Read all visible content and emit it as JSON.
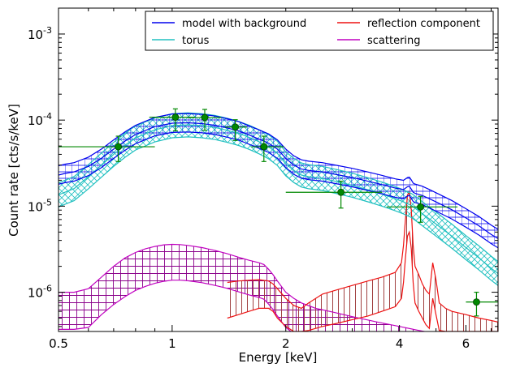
{
  "chart_data": {
    "type": "line",
    "xlabel": "Energy [keV]",
    "ylabel": "Count rate [cts/s/keV]",
    "xscale": "log",
    "yscale": "log",
    "xlim": [
      0.5,
      7.3
    ],
    "ylim": [
      3.5e-07,
      0.002
    ],
    "x_ticks": [
      {
        "value": 0.5,
        "label": "0.5"
      },
      {
        "value": 1,
        "label": "1"
      },
      {
        "value": 2,
        "label": "2"
      },
      {
        "value": 4,
        "label": "4"
      },
      {
        "value": 6,
        "label": "6"
      }
    ],
    "y_ticks": [
      {
        "value": 1e-06,
        "base": "10",
        "exp": "-6"
      },
      {
        "value": 1e-05,
        "base": "10",
        "exp": "-5"
      },
      {
        "value": 0.0001,
        "base": "10",
        "exp": "-4"
      },
      {
        "value": 0.001,
        "base": "10",
        "exp": "-3"
      }
    ],
    "legend_position": "top-right",
    "grid": false,
    "legend": [
      {
        "name": "model with background",
        "color": "#0000ee"
      },
      {
        "name": "torus",
        "color": "#20c0c0"
      },
      {
        "name": "reflection component",
        "color": "#ee1111"
      },
      {
        "name": "scattering",
        "color": "#c000c0"
      }
    ],
    "series": [
      {
        "name": "model with background",
        "color": "#0000ee",
        "band": true,
        "x": [
          0.5,
          0.52,
          0.55,
          0.6,
          0.65,
          0.7,
          0.75,
          0.8,
          0.9,
          1.0,
          1.1,
          1.2,
          1.3,
          1.4,
          1.5,
          1.6,
          1.7,
          1.8,
          1.9,
          2.0,
          2.1,
          2.2,
          2.3,
          2.5,
          2.7,
          3.0,
          3.3,
          3.6,
          3.9,
          4.1,
          4.2,
          4.25,
          4.3,
          4.35,
          4.4,
          4.5,
          4.6,
          4.8,
          5.0,
          5.5,
          6.0,
          6.5,
          7.0,
          7.3
        ],
        "y": [
          2.3e-05,
          2.4e-05,
          2.5e-05,
          2.9e-05,
          3.6e-05,
          4.6e-05,
          5.7e-05,
          6.8e-05,
          8.4e-05,
          9.2e-05,
          9.3e-05,
          9.1e-05,
          8.7e-05,
          8.1e-05,
          7.5e-05,
          6.7e-05,
          6e-05,
          5.4e-05,
          4.6e-05,
          3.6e-05,
          3e-05,
          2.7e-05,
          2.6e-05,
          2.5e-05,
          2.35e-05,
          2.15e-05,
          1.95e-05,
          1.78e-05,
          1.62e-05,
          1.56e-05,
          1.68e-05,
          1.7e-05,
          1.58e-05,
          1.45e-05,
          1.41e-05,
          1.37e-05,
          1.33e-05,
          1.22e-05,
          1.12e-05,
          9.1e-06,
          7.3e-06,
          5.9e-06,
          4.7e-06,
          4.2e-06
        ],
        "band_factor": 1.28
      },
      {
        "name": "torus",
        "color": "#20c0c0",
        "band": true,
        "x": [
          0.5,
          0.52,
          0.55,
          0.6,
          0.65,
          0.7,
          0.75,
          0.8,
          0.9,
          1.0,
          1.1,
          1.2,
          1.3,
          1.4,
          1.5,
          1.6,
          1.7,
          1.8,
          1.9,
          2.0,
          2.1,
          2.2,
          2.3,
          2.5,
          2.7,
          3.0,
          3.3,
          3.6,
          3.9,
          4.1,
          4.3,
          4.5,
          4.7,
          5.0,
          5.5,
          6.0,
          6.5,
          7.0,
          7.3
        ],
        "y": [
          1.35e-05,
          1.45e-05,
          1.6e-05,
          2.2e-05,
          3e-05,
          4e-05,
          5.1e-05,
          6.2e-05,
          7.7e-05,
          8.6e-05,
          8.8e-05,
          8.6e-05,
          8.2e-05,
          7.6e-05,
          7e-05,
          6.3e-05,
          5.6e-05,
          4.9e-05,
          4.1e-05,
          3.1e-05,
          2.6e-05,
          2.3e-05,
          2.2e-05,
          2.1e-05,
          1.95e-05,
          1.75e-05,
          1.55e-05,
          1.38e-05,
          1.22e-05,
          1.12e-05,
          1.02e-05,
          8.8e-06,
          7.6e-06,
          6.2e-06,
          4.5e-06,
          3.3e-06,
          2.5e-06,
          1.9e-06,
          1.65e-06
        ],
        "band_factor": 1.38
      },
      {
        "name": "reflection component",
        "color": "#ee1111",
        "band": true,
        "x": [
          1.4,
          1.5,
          1.6,
          1.7,
          1.8,
          1.85,
          1.9,
          2.0,
          2.1,
          2.2,
          2.3,
          2.5,
          2.7,
          3.0,
          3.3,
          3.6,
          3.9,
          4.05,
          4.1,
          4.15,
          4.2,
          4.25,
          4.3,
          4.35,
          4.4,
          4.5,
          4.6,
          4.7,
          4.8,
          4.9,
          5.0,
          5.1,
          5.3,
          5.5,
          6.0,
          6.5,
          7.0,
          7.3
        ],
        "y": [
          1.3e-06,
          1.35e-06,
          1.38e-06,
          1.4e-06,
          1.35e-06,
          1.25e-06,
          1.1e-06,
          8.5e-07,
          7e-07,
          6.5e-07,
          7.5e-07,
          9.5e-07,
          1.05e-06,
          1.2e-06,
          1.35e-06,
          1.5e-06,
          1.7e-06,
          2.2e-06,
          3.5e-06,
          7e-06,
          1.35e-05,
          1.45e-05,
          9e-06,
          3.5e-06,
          2e-06,
          1.6e-06,
          1.25e-06,
          1.05e-06,
          9.5e-07,
          2.2e-06,
          1.4e-06,
          7.5e-07,
          6.5e-07,
          6e-07,
          5.5e-07,
          5e-07,
          4.7e-07,
          4.5e-07
        ],
        "band_low": [
          5e-07,
          5.5e-07,
          6e-07,
          6.5e-07,
          6.5e-07,
          6e-07,
          5e-07,
          4e-07,
          3.5e-07,
          3.5e-07,
          3.6e-07,
          4e-07,
          4.3e-07,
          4.8e-07,
          5.3e-07,
          6e-07,
          6.8e-07,
          8.5e-07,
          1.3e-06,
          2.5e-06,
          4.5e-06,
          5e-06,
          3.2e-06,
          1.3e-06,
          7.5e-07,
          6e-07,
          5e-07,
          4.2e-07,
          3.8e-07,
          8.5e-07,
          5.5e-07,
          3.6e-07,
          3.5e-07,
          3.5e-07,
          3.5e-07,
          3.5e-07,
          3.5e-07,
          3.5e-07
        ]
      },
      {
        "name": "scattering",
        "color": "#c000c0",
        "band": true,
        "x": [
          0.5,
          0.55,
          0.6,
          0.65,
          0.7,
          0.75,
          0.8,
          0.85,
          0.9,
          0.95,
          1.0,
          1.05,
          1.1,
          1.2,
          1.3,
          1.4,
          1.5,
          1.6,
          1.7,
          1.75,
          1.8,
          1.85,
          1.9,
          2.0,
          2.1,
          2.2,
          2.4,
          2.7,
          3.0,
          3.5,
          4.0,
          4.5,
          5.0,
          6.0,
          7.0,
          7.3
        ],
        "y": [
          1e-06,
          1e-06,
          1.1e-06,
          1.5e-06,
          2e-06,
          2.5e-06,
          2.9e-06,
          3.2e-06,
          3.4e-06,
          3.55e-06,
          3.6e-06,
          3.58e-06,
          3.5e-06,
          3.3e-06,
          3.05e-06,
          2.8e-06,
          2.55e-06,
          2.35e-06,
          2.2e-06,
          2.1e-06,
          1.85e-06,
          1.6e-06,
          1.35e-06,
          1e-06,
          8.5e-07,
          7.5e-07,
          6.5e-07,
          5.8e-07,
          5.2e-07,
          4.5e-07,
          4e-07,
          3.6e-07,
          3.3e-07,
          3e-07,
          2.7e-07,
          2.6e-07
        ],
        "band_low": [
          3.7e-07,
          3.7e-07,
          3.9e-07,
          5.5e-07,
          7.2e-07,
          8.9e-07,
          1.05e-06,
          1.17e-06,
          1.27e-06,
          1.34e-06,
          1.38e-06,
          1.38e-06,
          1.36e-06,
          1.29e-06,
          1.2e-06,
          1.11e-06,
          1.01e-06,
          9.3e-07,
          8.7e-07,
          8.3e-07,
          7.3e-07,
          6.3e-07,
          5.3e-07,
          3.9e-07,
          3.3e-07,
          2.9e-07,
          2.5e-07,
          2.2e-07,
          2e-07,
          1.8e-07,
          1.6e-07,
          1.5e-07,
          1.4e-07,
          1.3e-07,
          1.2e-07,
          1.2e-07
        ]
      }
    ],
    "data_points": {
      "color": "#008800",
      "x": [
        0.72,
        1.02,
        1.22,
        1.47,
        1.75,
        2.8,
        4.55,
        6.4
      ],
      "y": [
        4.9e-05,
        0.000108,
        0.000107,
        8.3e-05,
        4.9e-05,
        1.45e-05,
        9.8e-06,
        7.7e-07
      ],
      "xlo": [
        0.5,
        0.87,
        1.1,
        1.38,
        1.62,
        2.0,
        3.7,
        6.0
      ],
      "xhi": [
        0.9,
        1.15,
        1.35,
        1.58,
        1.98,
        3.6,
        5.7,
        7.3
      ],
      "ylo": [
        3.3e-05,
        7.5e-05,
        7.6e-05,
        5.8e-05,
        3.3e-05,
        9.5e-06,
        6.5e-06,
        5.3e-07
      ],
      "yhi": [
        6.5e-05,
        0.000135,
        0.000133,
        0.000101,
        6.5e-05,
        1.95e-05,
        1.3e-05,
        1e-06
      ]
    }
  }
}
